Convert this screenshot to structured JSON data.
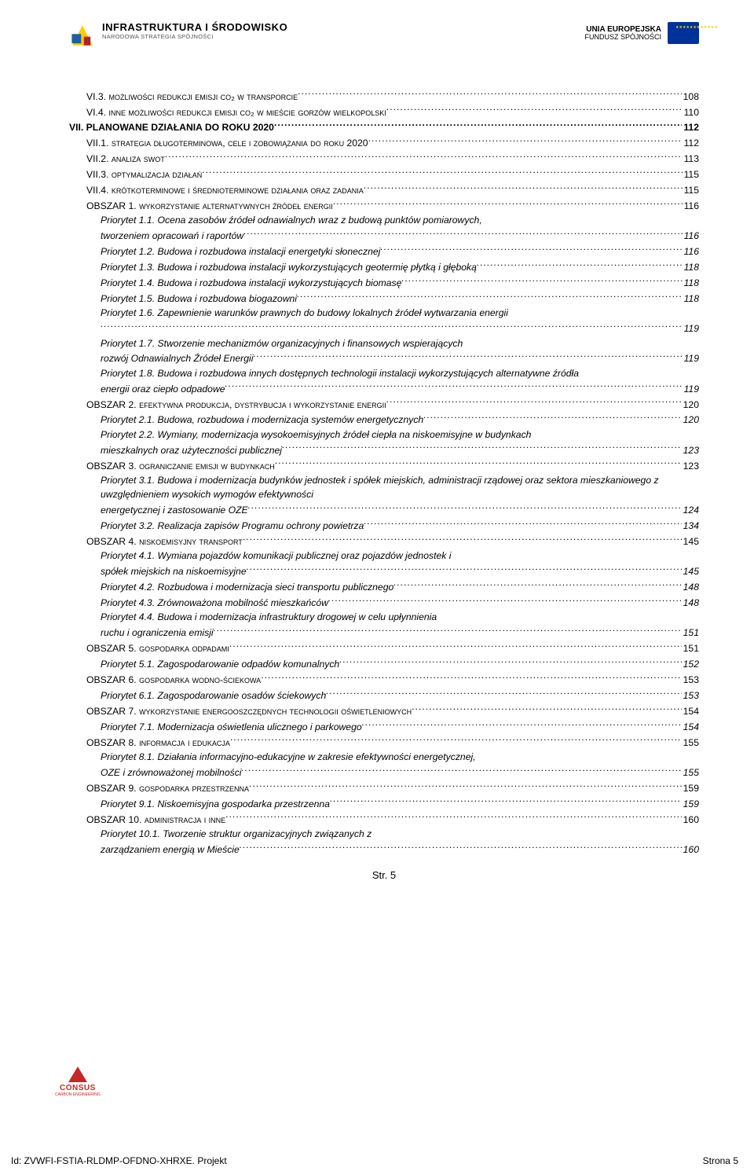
{
  "header": {
    "logo_left_title": "INFRASTRUKTURA I ŚRODOWISKO",
    "logo_left_sub": "NARODOWA STRATEGIA SPÓJNOŚCI",
    "eu_top": "UNIA EUROPEJSKA",
    "eu_bottom": "FUNDUSZ SPÓJNOŚCI"
  },
  "toc": [
    {
      "label": "VI.3. MOŻLIWOŚCI REDUKCJI EMISJI CO₂ W TRANSPORCIE",
      "page": "108",
      "cls": "lvl1b",
      "caps": true
    },
    {
      "label": "VI.4. INNE MOŻLIWOŚCI REDUKCJI EMISJI CO₂ W MIEŚCIE GORZÓW WIELKOPOLSKI",
      "page": "110",
      "cls": "lvl1b",
      "caps": true
    },
    {
      "label": "VII. PLANOWANE DZIAŁANIA DO ROKU 2020",
      "page": "112",
      "cls": "",
      "bold": true
    },
    {
      "label": "VII.1. STRATEGIA DŁUGOTERMINOWA, CELE I ZOBOWIĄZANIA DO ROKU 2020",
      "page": "112",
      "cls": "lvl1b",
      "caps": true
    },
    {
      "label": "VII.2. ANALIZA SWOT",
      "page": "113",
      "cls": "lvl1b",
      "caps": true
    },
    {
      "label": "VII.3. OPTYMALIZACJA DZIAŁAŃ",
      "page": "115",
      "cls": "lvl1b",
      "caps": true
    },
    {
      "label": "VII.4. KRÓTKOTERMINOWE I ŚREDNIOTERMINOWE DZIAŁANIA ORAZ ZADANIA",
      "page": "115",
      "cls": "lvl1b",
      "caps": true
    },
    {
      "label": "OBSZAR 1. WYKORZYSTANIE ALTERNATYWNYCH ŹRÓDEŁ ENERGII",
      "page": "116",
      "cls": "lvl2",
      "caps": true
    },
    {
      "label": "Priorytet 1.1. Ocena zasobów źródeł odnawialnych wraz z budową punktów pomiarowych, tworzeniem opracowań i raportów",
      "page": "116",
      "cls": "lvl3",
      "wrap": true
    },
    {
      "label": "Priorytet 1.2. Budowa i rozbudowa instalacji energetyki słonecznej",
      "page": "116",
      "cls": "lvl3"
    },
    {
      "label": "Priorytet 1.3. Budowa i rozbudowa instalacji wykorzystujących geotermię płytką i głęboką",
      "page": "118",
      "cls": "lvl3"
    },
    {
      "label": "Priorytet 1.4. Budowa i rozbudowa instalacji wykorzystujących biomasę",
      "page": "118",
      "cls": "lvl3"
    },
    {
      "label": "Priorytet 1.5. Budowa i rozbudowa biogazowni",
      "page": "118",
      "cls": "lvl3"
    },
    {
      "label": "Priorytet 1.6. Zapewnienie warunków prawnych do budowy lokalnych źródeł wytwarzania energii",
      "page": "119",
      "cls": "lvl3",
      "wrap": true,
      "cont": true
    },
    {
      "label": "Priorytet 1.7. Stworzenie mechanizmów organizacyjnych i finansowych wspierających rozwój Odnawialnych Źródeł Energii",
      "page": "119",
      "cls": "lvl3",
      "wrap": true
    },
    {
      "label": "Priorytet 1.8. Budowa i rozbudowa innych dostępnych technologii instalacji wykorzystujących alternatywne źródła energii oraz ciepło odpadowe",
      "page": "119",
      "cls": "lvl3",
      "wrap": true
    },
    {
      "label": "OBSZAR 2. EFEKTYWNA PRODUKCJA, DYSTRYBUCJA I WYKORZYSTANIE ENERGII",
      "page": "120",
      "cls": "lvl2",
      "caps": true
    },
    {
      "label": "Priorytet 2.1. Budowa, rozbudowa i modernizacja systemów energetycznych",
      "page": "120",
      "cls": "lvl3"
    },
    {
      "label": "Priorytet 2.2. Wymiany, modernizacja wysokoemisyjnych źródeł ciepła na niskoemisyjne w budynkach mieszkalnych oraz użyteczności publicznej",
      "page": "123",
      "cls": "lvl3",
      "wrap": true
    },
    {
      "label": "OBSZAR 3. OGRANICZANIE EMISJI W BUDYNKACH",
      "page": "123",
      "cls": "lvl2",
      "caps": true
    },
    {
      "label": "Priorytet 3.1. Budowa i modernizacja budynków jednostek i spółek miejskich, administracji rządowej oraz sektora mieszkaniowego z uwzględnieniem wysokich wymogów efektywności energetycznej i zastosowanie OZE",
      "page": "124",
      "cls": "lvl3",
      "wrap": true
    },
    {
      "label": "Priorytet 3.2. Realizacja zapisów Programu ochrony powietrza",
      "page": "134",
      "cls": "lvl3"
    },
    {
      "label": "OBSZAR 4. NISKOEMISYJNY TRANSPORT",
      "page": "145",
      "cls": "lvl2",
      "caps": true
    },
    {
      "label": "Priorytet 4.1. Wymiana pojazdów komunikacji publicznej oraz pojazdów jednostek i spółek miejskich na niskoemisyjne",
      "page": "145",
      "cls": "lvl3",
      "wrap": true
    },
    {
      "label": "Priorytet 4.2. Rozbudowa i modernizacja sieci transportu publicznego",
      "page": "148",
      "cls": "lvl3"
    },
    {
      "label": "Priorytet 4.3. Zrównoważona mobilność mieszkańców",
      "page": "148",
      "cls": "lvl3"
    },
    {
      "label": "Priorytet 4.4. Budowa i modernizacja infrastruktury drogowej w celu upłynnienia ruchu i ograniczenia emisji",
      "page": "151",
      "cls": "lvl3",
      "wrap": true
    },
    {
      "label": "OBSZAR 5. GOSPODARKA ODPADAMI",
      "page": "151",
      "cls": "lvl2",
      "caps": true
    },
    {
      "label": "Priorytet 5.1. Zagospodarowanie odpadów komunalnych",
      "page": "152",
      "cls": "lvl3"
    },
    {
      "label": "OBSZAR 6. GOSPODARKA WODNO-ŚCIEKOWA",
      "page": "153",
      "cls": "lvl2",
      "caps": true
    },
    {
      "label": "Priorytet 6.1. Zagospodarowanie osadów ściekowych",
      "page": "153",
      "cls": "lvl3"
    },
    {
      "label": "OBSZAR 7. WYKORZYSTANIE ENERGOOSZCZĘDNYCH TECHNOLOGII OŚWIETLENIOWYCH",
      "page": "154",
      "cls": "lvl2",
      "caps": true
    },
    {
      "label": "Priorytet 7.1. Modernizacja oświetlenia ulicznego i parkowego",
      "page": "154",
      "cls": "lvl3"
    },
    {
      "label": "OBSZAR 8. INFORMACJA I EDUKACJA",
      "page": "155",
      "cls": "lvl2",
      "caps": true
    },
    {
      "label": "Priorytet 8.1. Działania informacyjno-edukacyjne w zakresie efektywności energetycznej, OZE i zrównoważonej mobilności",
      "page": "155",
      "cls": "lvl3",
      "wrap": true
    },
    {
      "label": "OBSZAR 9. GOSPODARKA PRZESTRZENNA",
      "page": "159",
      "cls": "lvl2",
      "caps": true
    },
    {
      "label": "Priorytet 9.1. Niskoemisyjna gospodarka przestrzenna",
      "page": "159",
      "cls": "lvl3"
    },
    {
      "label": "OBSZAR 10. ADMINISTRACJA I INNE",
      "page": "160",
      "cls": "lvl2",
      "caps": true
    },
    {
      "label": "Priorytet 10.1. Tworzenie struktur organizacyjnych związanych z zarządzaniem energią w Mieście",
      "page": "160",
      "cls": "lvl3",
      "wrap": true
    }
  ],
  "center_page": "Str. 5",
  "footer_logo": {
    "name": "CONSUS",
    "sub": "CARBON ENGINEERING"
  },
  "doc_footer": {
    "left": "Id: ZVWFI-FSTIA-RLDMP-OFDNO-XHRXE. Projekt",
    "right": "Strona 5"
  }
}
